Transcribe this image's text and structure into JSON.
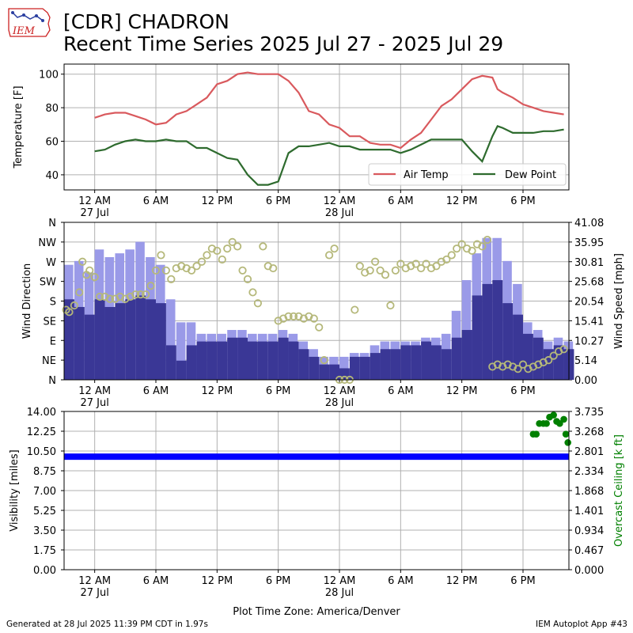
{
  "header": {
    "title_line1": "[CDR] CHADRON",
    "title_line2": "Recent Time Series 2025 Jul 27 - 2025 Jul 29",
    "logo_text": "IEM"
  },
  "footer": {
    "generated": "Generated at 28 Jul 2025 11:39 PM CDT in 1.97s",
    "app": "IEM Autoplot App #43"
  },
  "xaxis": {
    "tick_hours": [
      0,
      6,
      12,
      18,
      24,
      30,
      36,
      42
    ],
    "tick_labels": [
      "12 AM",
      "6 AM",
      "12 PM",
      "6 PM",
      "12 AM",
      "6 AM",
      "12 PM",
      "6 PM"
    ],
    "date_labels": [
      {
        "hour": 0,
        "label": "27 Jul"
      },
      {
        "hour": 24,
        "label": "28 Jul"
      }
    ],
    "range_hours": [
      -3,
      46.5
    ],
    "timezone_label": "Plot Time Zone: America/Denver"
  },
  "colors": {
    "air_temp": "#d9595d",
    "dew_point": "#2e6b2e",
    "wind_bar": "#3a3796",
    "wind_gust": "#9a9ae8",
    "wind_dir": "#b5b87a",
    "visibility": "#0000ff",
    "ceiling": "#008000",
    "grid": "#b0b0b0"
  },
  "chart_data": [
    {
      "type": "line",
      "ylabel": "Temperature [F]",
      "ylim": [
        31,
        106
      ],
      "yticks": [
        40,
        60,
        80,
        100
      ],
      "grid": true,
      "legend_position": "lower-right",
      "series": [
        {
          "name": "Air Temp",
          "x": [
            0,
            1,
            2,
            3,
            4,
            5,
            6,
            7,
            8,
            9,
            10,
            11,
            12,
            13,
            14,
            15,
            16,
            17,
            18,
            19,
            20,
            21,
            22,
            23,
            24,
            25,
            26,
            27,
            28,
            29,
            30,
            31,
            32,
            33,
            34,
            35,
            36,
            37,
            38,
            39,
            39.5,
            40,
            41,
            42,
            43,
            44,
            45,
            46
          ],
          "y": [
            74,
            76,
            77,
            77,
            75,
            73,
            70,
            71,
            76,
            78,
            82,
            86,
            94,
            96,
            100,
            101,
            100,
            100,
            100,
            96,
            89,
            78,
            76,
            70,
            68,
            63,
            63,
            59,
            58,
            58,
            56,
            61,
            65,
            73,
            81,
            85,
            91,
            97,
            99,
            98,
            91,
            89,
            86,
            82,
            80,
            78,
            77,
            76
          ]
        },
        {
          "name": "Dew Point",
          "x": [
            0,
            1,
            2,
            3,
            4,
            5,
            6,
            7,
            8,
            9,
            10,
            11,
            12,
            13,
            14,
            15,
            16,
            17,
            18,
            19,
            20,
            21,
            22,
            23,
            24,
            25,
            26,
            27,
            28,
            29,
            30,
            31,
            32,
            33,
            34,
            35,
            36,
            37,
            38,
            39,
            39.5,
            40,
            41,
            42,
            43,
            44,
            45,
            46
          ],
          "y": [
            54,
            55,
            58,
            60,
            61,
            60,
            60,
            61,
            60,
            60,
            56,
            56,
            53,
            50,
            49,
            40,
            34,
            34,
            36,
            53,
            57,
            57,
            58,
            59,
            57,
            57,
            55,
            55,
            55,
            55,
            53,
            55,
            58,
            61,
            61,
            61,
            61,
            54,
            48,
            63,
            69,
            68,
            65,
            65,
            65,
            66,
            66,
            67
          ]
        }
      ]
    },
    {
      "type": "bar",
      "ylabel_left": "Wind Direction",
      "ylabel_right": "Wind Speed [mph]",
      "ylim": [
        0,
        41.08
      ],
      "direction_ticks": [
        "N",
        "NE",
        "E",
        "SE",
        "S",
        "SW",
        "W",
        "NW",
        "N"
      ],
      "speed_ticks": [
        "0.00",
        "5.14",
        "10.27",
        "15.41",
        "20.54",
        "25.68",
        "30.81",
        "35.95",
        "41.08"
      ],
      "speed_hourly_mph": [
        21,
        19,
        17,
        21,
        19,
        20,
        21,
        22,
        21,
        20,
        9,
        5,
        9,
        10,
        10,
        10,
        11,
        11,
        10,
        10,
        10,
        11,
        10,
        8,
        6,
        4,
        4,
        3,
        6,
        6,
        7,
        8,
        8,
        9,
        9,
        10,
        9,
        8,
        11,
        13,
        22,
        25,
        26,
        20,
        17,
        12,
        11,
        8,
        9,
        8
      ],
      "gust_hourly_mph": [
        30,
        31,
        28,
        34,
        32,
        33,
        34,
        36,
        32,
        30,
        21,
        15,
        15,
        12,
        12,
        12,
        13,
        13,
        12,
        12,
        12,
        13,
        12,
        10,
        8,
        6,
        6,
        6,
        7,
        7,
        9,
        10,
        10,
        10,
        10,
        11,
        11,
        12,
        18,
        26,
        33,
        37,
        37,
        31,
        25,
        15,
        13,
        10,
        11,
        10
      ],
      "direction_points_deg": [
        {
          "x": -2.8,
          "d": 160
        },
        {
          "x": -2.5,
          "d": 155
        },
        {
          "x": -2.0,
          "d": 170
        },
        {
          "x": -1.5,
          "d": 200
        },
        {
          "x": -1.2,
          "d": 270
        },
        {
          "x": -0.8,
          "d": 240
        },
        {
          "x": -0.5,
          "d": 250
        },
        {
          "x": 0.0,
          "d": 235
        },
        {
          "x": 0.5,
          "d": 190
        },
        {
          "x": 1.0,
          "d": 190
        },
        {
          "x": 1.5,
          "d": 185
        },
        {
          "x": 2.0,
          "d": 185
        },
        {
          "x": 2.5,
          "d": 190
        },
        {
          "x": 3.0,
          "d": 185
        },
        {
          "x": 3.5,
          "d": 190
        },
        {
          "x": 4.0,
          "d": 195
        },
        {
          "x": 4.5,
          "d": 195
        },
        {
          "x": 5.0,
          "d": 195
        },
        {
          "x": 5.5,
          "d": 215
        },
        {
          "x": 6.0,
          "d": 250
        },
        {
          "x": 6.5,
          "d": 285
        },
        {
          "x": 7.0,
          "d": 250
        },
        {
          "x": 7.5,
          "d": 230
        },
        {
          "x": 8.0,
          "d": 255
        },
        {
          "x": 8.5,
          "d": 260
        },
        {
          "x": 9.0,
          "d": 255
        },
        {
          "x": 9.5,
          "d": 250
        },
        {
          "x": 10.0,
          "d": 260
        },
        {
          "x": 10.5,
          "d": 270
        },
        {
          "x": 11.0,
          "d": 285
        },
        {
          "x": 11.5,
          "d": 300
        },
        {
          "x": 12.0,
          "d": 295
        },
        {
          "x": 12.5,
          "d": 275
        },
        {
          "x": 13.0,
          "d": 300
        },
        {
          "x": 13.5,
          "d": 315
        },
        {
          "x": 14.0,
          "d": 305
        },
        {
          "x": 14.5,
          "d": 250
        },
        {
          "x": 15.0,
          "d": 230
        },
        {
          "x": 15.5,
          "d": 200
        },
        {
          "x": 16.0,
          "d": 175
        },
        {
          "x": 16.5,
          "d": 305
        },
        {
          "x": 17.0,
          "d": 260
        },
        {
          "x": 17.5,
          "d": 255
        },
        {
          "x": 18.0,
          "d": 135
        },
        {
          "x": 18.5,
          "d": 140
        },
        {
          "x": 19.0,
          "d": 145
        },
        {
          "x": 19.5,
          "d": 145
        },
        {
          "x": 20.0,
          "d": 145
        },
        {
          "x": 20.5,
          "d": 140
        },
        {
          "x": 21.0,
          "d": 145
        },
        {
          "x": 21.5,
          "d": 140
        },
        {
          "x": 22.0,
          "d": 120
        },
        {
          "x": 22.5,
          "d": 45
        },
        {
          "x": 23.0,
          "d": 285
        },
        {
          "x": 23.5,
          "d": 300
        },
        {
          "x": 24.0,
          "d": 0
        },
        {
          "x": 24.5,
          "d": 0
        },
        {
          "x": 25.0,
          "d": 0
        },
        {
          "x": 25.5,
          "d": 160
        },
        {
          "x": 26.0,
          "d": 260
        },
        {
          "x": 26.5,
          "d": 245
        },
        {
          "x": 27.0,
          "d": 250
        },
        {
          "x": 27.5,
          "d": 270
        },
        {
          "x": 28.0,
          "d": 250
        },
        {
          "x": 28.5,
          "d": 240
        },
        {
          "x": 29.0,
          "d": 170
        },
        {
          "x": 29.5,
          "d": 250
        },
        {
          "x": 30.0,
          "d": 265
        },
        {
          "x": 30.5,
          "d": 255
        },
        {
          "x": 31.0,
          "d": 260
        },
        {
          "x": 31.5,
          "d": 265
        },
        {
          "x": 32.0,
          "d": 255
        },
        {
          "x": 32.5,
          "d": 265
        },
        {
          "x": 33.0,
          "d": 255
        },
        {
          "x": 33.5,
          "d": 260
        },
        {
          "x": 34.0,
          "d": 270
        },
        {
          "x": 34.5,
          "d": 275
        },
        {
          "x": 35.0,
          "d": 285
        },
        {
          "x": 35.5,
          "d": 300
        },
        {
          "x": 36.0,
          "d": 310
        },
        {
          "x": 36.5,
          "d": 300
        },
        {
          "x": 37.0,
          "d": 295
        },
        {
          "x": 37.5,
          "d": 310
        },
        {
          "x": 38.0,
          "d": 305
        },
        {
          "x": 38.5,
          "d": 320
        },
        {
          "x": 39.0,
          "d": 30
        },
        {
          "x": 39.5,
          "d": 35
        },
        {
          "x": 40.0,
          "d": 30
        },
        {
          "x": 40.5,
          "d": 35
        },
        {
          "x": 41.0,
          "d": 30
        },
        {
          "x": 41.5,
          "d": 25
        },
        {
          "x": 42.0,
          "d": 35
        },
        {
          "x": 42.5,
          "d": 25
        },
        {
          "x": 43.0,
          "d": 30
        },
        {
          "x": 43.5,
          "d": 35
        },
        {
          "x": 44.0,
          "d": 40
        },
        {
          "x": 44.5,
          "d": 45
        },
        {
          "x": 45.0,
          "d": 55
        },
        {
          "x": 45.5,
          "d": 65
        },
        {
          "x": 46.0,
          "d": 70
        }
      ]
    },
    {
      "type": "scatter",
      "ylabel_left": "Visibility [miles]",
      "ylabel_right": "Overcast Ceiling [k ft]",
      "ylim_visibility": [
        0,
        14
      ],
      "visibility_ticks": [
        "0.00",
        "1.75",
        "3.50",
        "5.25",
        "7.00",
        "8.75",
        "10.50",
        "12.25",
        "14.00"
      ],
      "ceiling_ticks": [
        "0.000",
        "0.467",
        "0.934",
        "1.401",
        "1.868",
        "2.334",
        "2.801",
        "3.268",
        "3.735"
      ],
      "visibility_miles": {
        "x_start": -3,
        "x_end": 46.5,
        "value": 10.0
      },
      "ceiling_points_kft": [
        {
          "x": 43.0,
          "y": 3.2
        },
        {
          "x": 43.3,
          "y": 3.2
        },
        {
          "x": 43.6,
          "y": 3.45
        },
        {
          "x": 44.0,
          "y": 3.45
        },
        {
          "x": 44.3,
          "y": 3.45
        },
        {
          "x": 44.6,
          "y": 3.6
        },
        {
          "x": 45.0,
          "y": 3.65
        },
        {
          "x": 45.3,
          "y": 3.5
        },
        {
          "x": 45.6,
          "y": 3.45
        },
        {
          "x": 46.0,
          "y": 3.55
        },
        {
          "x": 46.2,
          "y": 3.2
        },
        {
          "x": 46.4,
          "y": 3.0
        }
      ]
    }
  ]
}
